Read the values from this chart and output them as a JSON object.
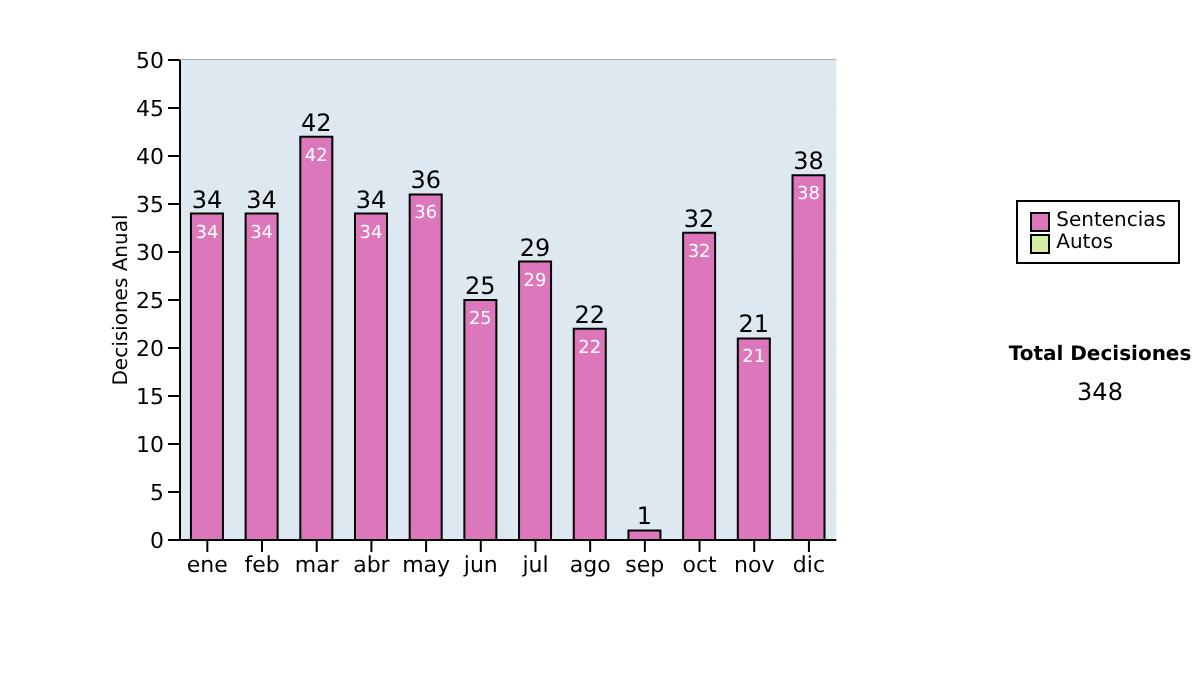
{
  "chart_data": {
    "type": "bar",
    "ylabel": "Decisiones Anual",
    "categories": [
      "ene",
      "feb",
      "mar",
      "abr",
      "may",
      "jun",
      "jul",
      "ago",
      "sep",
      "oct",
      "nov",
      "dic"
    ],
    "series": [
      {
        "name": "Sentencias",
        "color": "#dd77bb",
        "values": [
          34,
          34,
          42,
          34,
          36,
          25,
          29,
          22,
          1,
          32,
          21,
          38
        ],
        "value_labels": [
          "34",
          "34",
          "42",
          "34",
          "36",
          "25",
          "29",
          "22",
          null,
          "32",
          "21",
          "38"
        ]
      },
      {
        "name": "Autos",
        "color": "#d4eca4",
        "values": [
          null,
          null,
          null,
          null,
          null,
          null,
          null,
          null,
          null,
          null,
          null,
          null
        ]
      }
    ],
    "stacked": true,
    "totals": [
      "34",
      "34",
      "42",
      "34",
      "36",
      "25",
      "29",
      "22",
      "1",
      "32",
      "21",
      "38"
    ],
    "ylim": [
      0,
      50
    ],
    "yticks": [
      0,
      5,
      10,
      15,
      20,
      25,
      30,
      35,
      40,
      45,
      50
    ],
    "grid": "y",
    "legend": "right",
    "annotations": [
      "Total Decisiones",
      "348"
    ]
  }
}
